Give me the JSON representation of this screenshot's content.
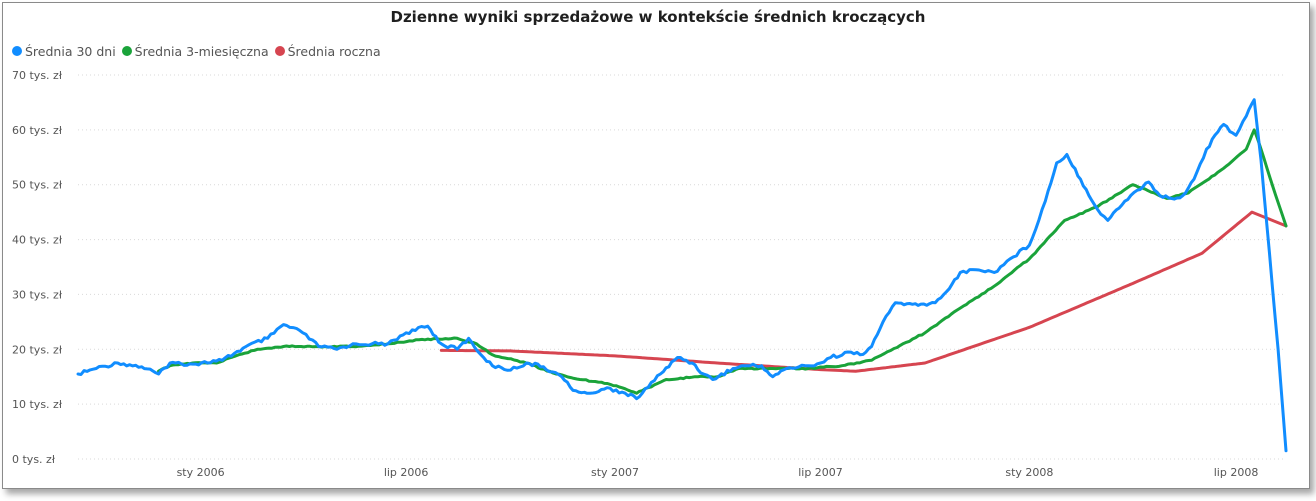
{
  "chart_data": {
    "type": "line",
    "title": "Dzienne wyniki sprzedażowe w kontekście średnich kroczących",
    "xlabel": "",
    "ylabel": "",
    "x_range": [
      "2005-09-15",
      "2008-08-14"
    ],
    "ylim": [
      0,
      70000
    ],
    "grid": true,
    "legend_position": "top-left",
    "y_ticks": [
      {
        "value": 0,
        "label": "0 tys. zł"
      },
      {
        "value": 10000,
        "label": "10 tys. zł"
      },
      {
        "value": 20000,
        "label": "20 tys. zł"
      },
      {
        "value": 30000,
        "label": "30 tys. zł"
      },
      {
        "value": 40000,
        "label": "40 tys. zł"
      },
      {
        "value": 50000,
        "label": "50 tys. zł"
      },
      {
        "value": 60000,
        "label": "60 tys. zł"
      },
      {
        "value": 70000,
        "label": "70 tys. zł"
      }
    ],
    "x_ticks": [
      {
        "value": "2006-01-01",
        "label": "sty 2006"
      },
      {
        "value": "2006-07-01",
        "label": "lip 2006"
      },
      {
        "value": "2007-01-01",
        "label": "sty 2007"
      },
      {
        "value": "2007-07-01",
        "label": "lip 2007"
      },
      {
        "value": "2008-01-01",
        "label": "sty 2008"
      },
      {
        "value": "2008-07-01",
        "label": "lip 2008"
      }
    ],
    "series": [
      {
        "name": "Średnia 30 dni",
        "color": "#118dff",
        "points": [
          [
            "2005-09-15",
            15500
          ],
          [
            "2005-10-01",
            16500
          ],
          [
            "2005-10-20",
            17500
          ],
          [
            "2005-11-10",
            16800
          ],
          [
            "2005-11-25",
            15500
          ],
          [
            "2005-12-05",
            17500
          ],
          [
            "2005-12-25",
            17300
          ],
          [
            "2006-01-20",
            18000
          ],
          [
            "2006-02-10",
            20500
          ],
          [
            "2006-03-01",
            22000
          ],
          [
            "2006-03-15",
            24500
          ],
          [
            "2006-04-01",
            23000
          ],
          [
            "2006-04-15",
            20500
          ],
          [
            "2006-05-01",
            20000
          ],
          [
            "2006-05-15",
            21000
          ],
          [
            "2006-06-01",
            21000
          ],
          [
            "2006-06-15",
            21000
          ],
          [
            "2006-07-01",
            23000
          ],
          [
            "2006-07-20",
            24200
          ],
          [
            "2006-08-01",
            21000
          ],
          [
            "2006-08-15",
            20000
          ],
          [
            "2006-08-25",
            22000
          ],
          [
            "2006-09-05",
            19000
          ],
          [
            "2006-09-15",
            17000
          ],
          [
            "2006-10-01",
            16200
          ],
          [
            "2006-10-15",
            17500
          ],
          [
            "2006-10-30",
            16800
          ],
          [
            "2006-11-15",
            15000
          ],
          [
            "2006-11-25",
            12500
          ],
          [
            "2006-12-10",
            12000
          ],
          [
            "2006-12-25",
            13000
          ],
          [
            "2007-01-10",
            12000
          ],
          [
            "2007-01-20",
            11000
          ],
          [
            "2007-01-25",
            12000
          ],
          [
            "2007-02-10",
            15500
          ],
          [
            "2007-02-25",
            18500
          ],
          [
            "2007-03-10",
            17500
          ],
          [
            "2007-03-20",
            15500
          ],
          [
            "2007-03-28",
            14500
          ],
          [
            "2007-04-15",
            16500
          ],
          [
            "2007-04-25",
            17000
          ],
          [
            "2007-05-10",
            17000
          ],
          [
            "2007-05-20",
            15000
          ],
          [
            "2007-06-01",
            16500
          ],
          [
            "2007-06-20",
            17000
          ],
          [
            "2007-07-01",
            17500
          ],
          [
            "2007-07-10",
            18500
          ],
          [
            "2007-07-25",
            19500
          ],
          [
            "2007-08-05",
            19000
          ],
          [
            "2007-08-15",
            20500
          ],
          [
            "2007-08-25",
            25000
          ],
          [
            "2007-09-05",
            28500
          ],
          [
            "2007-09-25",
            28000
          ],
          [
            "2007-10-10",
            28500
          ],
          [
            "2007-10-20",
            30500
          ],
          [
            "2007-11-01",
            34000
          ],
          [
            "2007-11-15",
            34500
          ],
          [
            "2007-12-01",
            34000
          ],
          [
            "2007-12-15",
            36500
          ],
          [
            "2008-01-01",
            39000
          ],
          [
            "2008-01-15",
            47000
          ],
          [
            "2008-01-25",
            54000
          ],
          [
            "2008-02-03",
            55500
          ],
          [
            "2008-02-15",
            51000
          ],
          [
            "2008-03-01",
            45500
          ],
          [
            "2008-03-10",
            43500
          ],
          [
            "2008-03-25",
            47000
          ],
          [
            "2008-04-05",
            49000
          ],
          [
            "2008-04-15",
            50500
          ],
          [
            "2008-04-25",
            48000
          ],
          [
            "2008-05-05",
            47500
          ],
          [
            "2008-05-15",
            48000
          ],
          [
            "2008-05-25",
            51000
          ],
          [
            "2008-06-05",
            56500
          ],
          [
            "2008-06-20",
            61000
          ],
          [
            "2008-07-01",
            59000
          ],
          [
            "2008-07-10",
            62500
          ],
          [
            "2008-07-17",
            65500
          ],
          [
            "2008-07-23",
            54500
          ],
          [
            "2008-07-28",
            43000
          ],
          [
            "2008-08-07",
            20000
          ],
          [
            "2008-08-14",
            1500
          ]
        ]
      },
      {
        "name": "Średnia 3-miesięczna",
        "color": "#1aa33a",
        "points": [
          [
            "2005-11-25",
            16000
          ],
          [
            "2005-12-05",
            17000
          ],
          [
            "2005-12-25",
            17500
          ],
          [
            "2006-01-15",
            17500
          ],
          [
            "2006-02-01",
            18800
          ],
          [
            "2006-02-20",
            20000
          ],
          [
            "2006-03-15",
            20500
          ],
          [
            "2006-04-15",
            20500
          ],
          [
            "2006-05-15",
            20500
          ],
          [
            "2006-06-15",
            21000
          ],
          [
            "2006-07-15",
            21800
          ],
          [
            "2006-08-15",
            22000
          ],
          [
            "2006-09-01",
            21000
          ],
          [
            "2006-09-15",
            19000
          ],
          [
            "2006-10-15",
            17500
          ],
          [
            "2006-11-10",
            15500
          ],
          [
            "2006-12-01",
            14500
          ],
          [
            "2006-12-20",
            14000
          ],
          [
            "2007-01-10",
            12800
          ],
          [
            "2007-01-20",
            12000
          ],
          [
            "2007-02-15",
            14500
          ],
          [
            "2007-03-15",
            15000
          ],
          [
            "2007-04-01",
            15000
          ],
          [
            "2007-04-20",
            16500
          ],
          [
            "2007-05-20",
            16500
          ],
          [
            "2007-06-20",
            16500
          ],
          [
            "2007-07-20",
            17000
          ],
          [
            "2007-08-15",
            18000
          ],
          [
            "2007-09-01",
            19800
          ],
          [
            "2007-10-01",
            23000
          ],
          [
            "2007-11-01",
            27500
          ],
          [
            "2007-12-01",
            31500
          ],
          [
            "2008-01-01",
            36500
          ],
          [
            "2008-02-01",
            43500
          ],
          [
            "2008-03-01",
            46000
          ],
          [
            "2008-04-01",
            50000
          ],
          [
            "2008-04-20",
            48500
          ],
          [
            "2008-05-01",
            47500
          ],
          [
            "2008-05-20",
            48500
          ],
          [
            "2008-06-20",
            53000
          ],
          [
            "2008-07-10",
            56500
          ],
          [
            "2008-07-17",
            60000
          ],
          [
            "2008-07-23",
            56500
          ],
          [
            "2008-08-05",
            48000
          ],
          [
            "2008-08-14",
            42500
          ]
        ]
      },
      {
        "name": "Średnia roczna",
        "color": "#d64550",
        "points": [
          [
            "2006-08-01",
            19800
          ],
          [
            "2006-10-01",
            19700
          ],
          [
            "2007-01-01",
            18800
          ],
          [
            "2007-04-01",
            17500
          ],
          [
            "2007-07-01",
            16300
          ],
          [
            "2007-08-01",
            16000
          ],
          [
            "2007-10-01",
            17500
          ],
          [
            "2008-01-01",
            24000
          ],
          [
            "2008-04-01",
            32000
          ],
          [
            "2008-06-01",
            37500
          ],
          [
            "2008-07-15",
            45000
          ],
          [
            "2008-08-14",
            42500
          ]
        ]
      }
    ]
  }
}
